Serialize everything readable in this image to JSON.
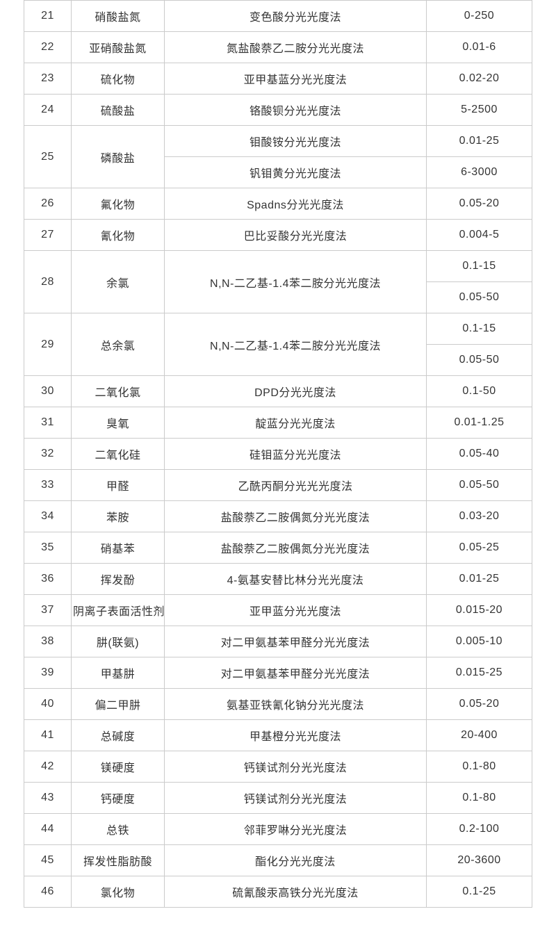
{
  "styles": {
    "border_color": "#cbcbcb",
    "text_color": "#333333",
    "background_color": "#ffffff"
  },
  "chart_data": {
    "type": "table",
    "title": "",
    "rows": [
      {
        "type": "single",
        "num": "21",
        "name": "硝酸盐氮",
        "method": "变色酸分光光度法",
        "range": "0-250"
      },
      {
        "type": "single",
        "num": "22",
        "name": "亚硝酸盐氮",
        "method": "氮盐酸萘乙二胺分光光度法",
        "range": "0.01-6"
      },
      {
        "type": "single",
        "num": "23",
        "name": "硫化物",
        "method": "亚甲基蓝分光光度法",
        "range": "0.02-20"
      },
      {
        "type": "single",
        "num": "24",
        "name": "硫酸盐",
        "method": "铬酸钡分光光度法",
        "range": "5-2500"
      },
      {
        "type": "split_both",
        "num": "25",
        "name": "磷酸盐",
        "sub": [
          {
            "method": "钼酸铵分光光度法",
            "range": "0.01-25"
          },
          {
            "method": "钒钼黄分光光度法",
            "range": "6-3000"
          }
        ]
      },
      {
        "type": "single",
        "num": "26",
        "name": "氟化物",
        "method": "Spadns分光光度法",
        "range": "0.05-20"
      },
      {
        "type": "single",
        "num": "27",
        "name": "氰化物",
        "method": "巴比妥酸分光光度法",
        "range": "0.004-5"
      },
      {
        "type": "split_range",
        "num": "28",
        "name": "余氯",
        "method": "N,N-二乙基-1.4苯二胺分光光度法",
        "ranges": [
          "0.1-15",
          "0.05-50"
        ]
      },
      {
        "type": "split_range",
        "num": "29",
        "name": "总余氯",
        "method": "N,N-二乙基-1.4苯二胺分光光度法",
        "ranges": [
          "0.1-15",
          "0.05-50"
        ]
      },
      {
        "type": "single",
        "num": "30",
        "name": "二氧化氯",
        "method": "DPD分光光度法",
        "range": "0.1-50"
      },
      {
        "type": "single",
        "num": "31",
        "name": "臭氧",
        "method": "靛蓝分光光度法",
        "range": "0.01-1.25"
      },
      {
        "type": "single",
        "num": "32",
        "name": "二氧化硅",
        "method": "硅钼蓝分光光度法",
        "range": "0.05-40"
      },
      {
        "type": "single",
        "num": "33",
        "name": "甲醛",
        "method": "乙酰丙酮分光光光度法",
        "range": "0.05-50"
      },
      {
        "type": "single",
        "num": "34",
        "name": "苯胺",
        "method": "盐酸萘乙二胺偶氮分光光度法",
        "range": "0.03-20"
      },
      {
        "type": "single",
        "num": "35",
        "name": "硝基苯",
        "method": "盐酸萘乙二胺偶氮分光光度法",
        "range": "0.05-25"
      },
      {
        "type": "single",
        "num": "36",
        "name": "挥发酚",
        "method": "4-氨基安替比林分光光度法",
        "range": "0.01-25"
      },
      {
        "type": "single",
        "num": "37",
        "name": "阴离子表面活性剂",
        "method": "亚甲蓝分光光度法",
        "range": "0.015-20"
      },
      {
        "type": "single",
        "num": "38",
        "name": "肼(联氨)",
        "method": "对二甲氨基苯甲醛分光光度法",
        "range": "0.005-10"
      },
      {
        "type": "single",
        "num": "39",
        "name": "甲基肼",
        "method": "对二甲氨基苯甲醛分光光度法",
        "range": "0.015-25"
      },
      {
        "type": "single",
        "num": "40",
        "name": "偏二甲肼",
        "method": "氨基亚铁氰化钠分光光度法",
        "range": "0.05-20"
      },
      {
        "type": "single",
        "num": "41",
        "name": "总碱度",
        "method": "甲基橙分光光度法",
        "range": "20-400"
      },
      {
        "type": "single",
        "num": "42",
        "name": "镁硬度",
        "method": "钙镁试剂分光光度法",
        "range": "0.1-80"
      },
      {
        "type": "single",
        "num": "43",
        "name": "钙硬度",
        "method": "钙镁试剂分光光度法",
        "range": "0.1-80"
      },
      {
        "type": "single",
        "num": "44",
        "name": "总铁",
        "method": "邻菲罗啉分光光度法",
        "range": "0.2-100"
      },
      {
        "type": "single",
        "num": "45",
        "name": "挥发性脂肪酸",
        "method": "酯化分光光度法",
        "range": "20-3600"
      },
      {
        "type": "single",
        "num": "46",
        "name": "氯化物",
        "method": "硫氰酸汞高铁分光光度法",
        "range": "0.1-25"
      }
    ]
  }
}
